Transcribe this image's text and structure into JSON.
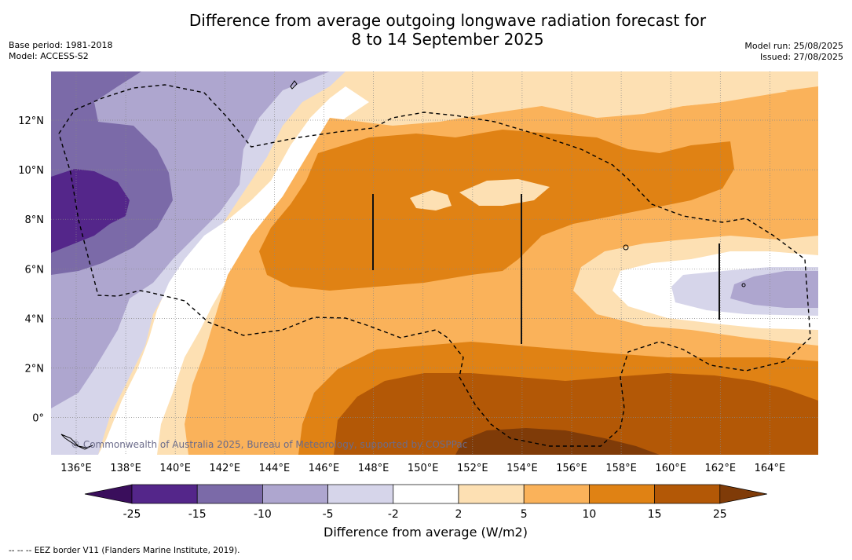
{
  "title_line1": "Difference from average outgoing longwave radiation forecast for",
  "title_line2": "8 to 14 September 2025",
  "base_period": "Base period: 1981-2018",
  "model": "Model: ACCESS-S2",
  "model_run": "Model run: 25/08/2025",
  "issued": "Issued: 27/08/2025",
  "copyright": "© Commonwealth of Australia 2025, Bureau of Meteorology, supported by COSPPac",
  "footnote": "--  --  -- EEZ border V11 (Flanders Marine Institute, 2019).",
  "colorbar_label": "Difference from average (W/m2)",
  "lon_ticks": [
    "136°E",
    "138°E",
    "140°E",
    "142°E",
    "144°E",
    "146°E",
    "148°E",
    "150°E",
    "152°E",
    "154°E",
    "156°E",
    "158°E",
    "160°E",
    "162°E",
    "164°E"
  ],
  "lat_ticks": [
    "12°N",
    "10°N",
    "8°N",
    "6°N",
    "4°N",
    "2°N",
    "0°"
  ],
  "colorbar_ticks": [
    "-25",
    "-15",
    "-10",
    "-5",
    "-2",
    "2",
    "5",
    "10",
    "15",
    "25"
  ],
  "colors": {
    "lt_neg25": "#3a0e5c",
    "n25_n15": "#54268a",
    "n15_n10": "#7b6aa8",
    "n10_n5": "#aea6cf",
    "n5_n2": "#d6d5ea",
    "n2_p2": "#ffffff",
    "p2_p5": "#fde0b3",
    "p5_p10": "#fab25a",
    "p10_p15": "#e08214",
    "p15_p25": "#b35806",
    "gt_p25": "#7f3b08"
  }
}
